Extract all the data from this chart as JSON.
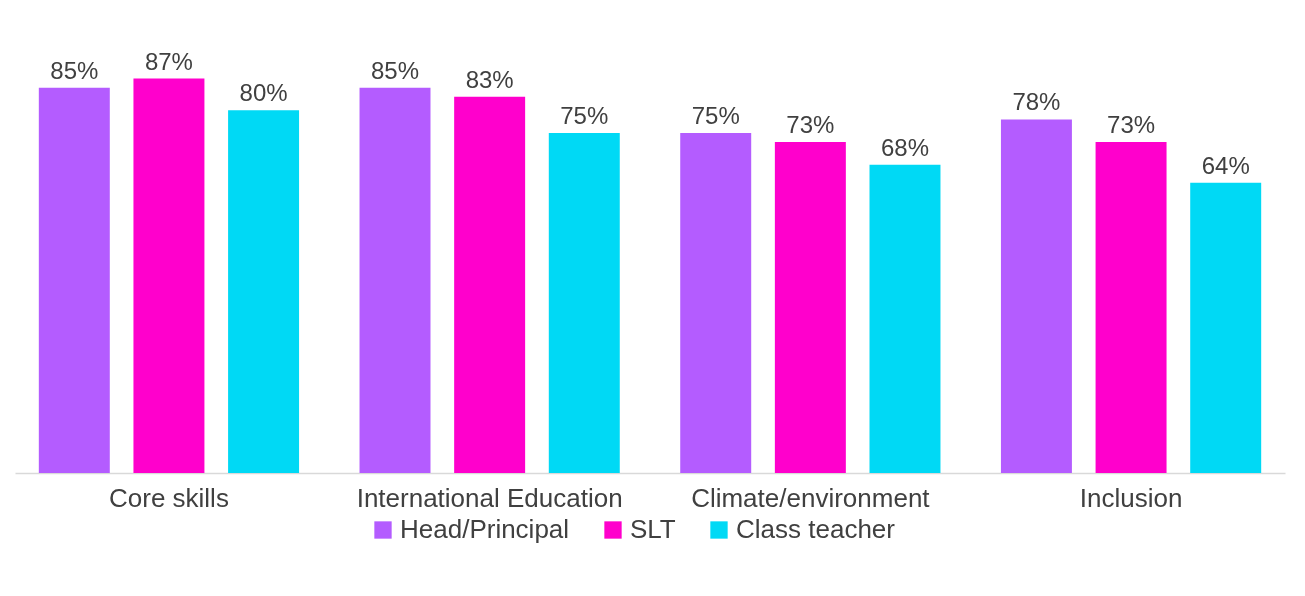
{
  "chart_data": {
    "type": "bar",
    "categories": [
      "Core skills",
      "International Education",
      "Climate/environment",
      "Inclusion"
    ],
    "series": [
      {
        "name": "Head/Principal",
        "color": "#b45cff",
        "values": [
          85,
          85,
          75,
          78
        ],
        "value_labels": [
          "85%",
          "85%",
          "75%",
          "78%"
        ]
      },
      {
        "name": "SLT",
        "color": "#ff00cc",
        "values": [
          87,
          83,
          73,
          73
        ],
        "value_labels": [
          "87%",
          "83%",
          "73%",
          "73%"
        ]
      },
      {
        "name": "Class teacher",
        "color": "#00d9f5",
        "values": [
          80,
          75,
          68,
          64
        ],
        "value_labels": [
          "80%",
          "75%",
          "68%",
          "64%"
        ]
      }
    ],
    "tick_labels": "x",
    "grid": false,
    "legend": "bottom"
  }
}
